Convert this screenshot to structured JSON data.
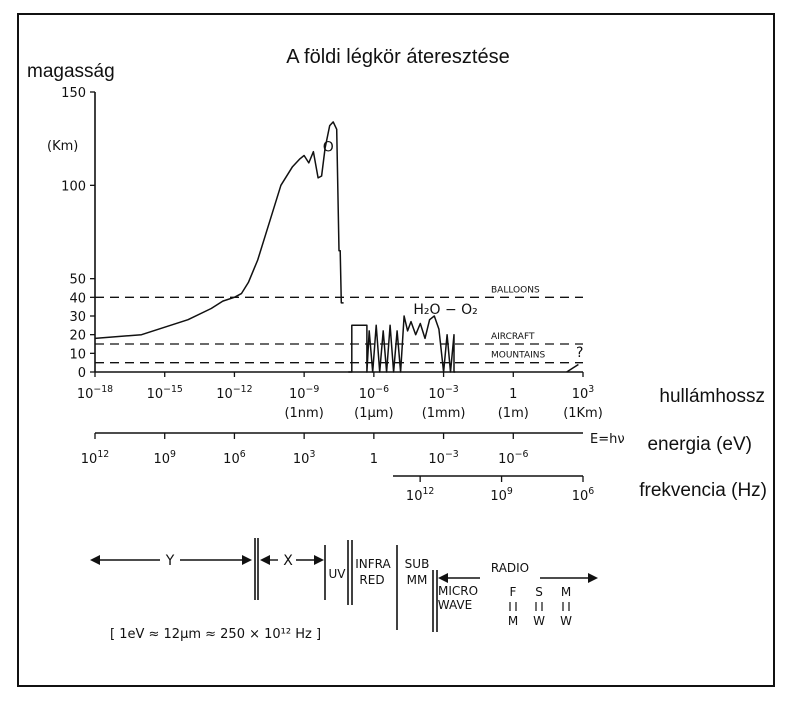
{
  "title": "A földi légkör áteresztése",
  "ylabel": "magasság",
  "yunit": "(Km)",
  "wavelength_label": "hullámhossz",
  "energy_label": "energia (eV)",
  "frequency_label": "frekvencia (Hz)",
  "energy_formula": "E=hν",
  "conversion_note": "[ 1eV ≈ 12μm ≈ 250 × 10¹² Hz ]",
  "chart_data": {
    "type": "line",
    "x_scale": "log10 wavelength (m)",
    "xlim": [
      -18,
      3
    ],
    "ylim": [
      0,
      150
    ],
    "y_ticks": [
      "150",
      "100",
      "50",
      "40",
      "30",
      "20",
      "10",
      "0"
    ],
    "y_tick_values": [
      150,
      100,
      50,
      40,
      30,
      20,
      10,
      0
    ],
    "x_ticks": [
      {
        "exp": -18,
        "base": "10",
        "power": "−18",
        "sub": ""
      },
      {
        "exp": -15,
        "base": "10",
        "power": "−15",
        "sub": ""
      },
      {
        "exp": -12,
        "base": "10",
        "power": "−12",
        "sub": ""
      },
      {
        "exp": -9,
        "base": "10",
        "power": "−9",
        "sub": "(1nm)"
      },
      {
        "exp": -6,
        "base": "10",
        "power": "−6",
        "sub": "(1μm)"
      },
      {
        "exp": -3,
        "base": "10",
        "power": "−3",
        "sub": "(1mm)"
      },
      {
        "exp": 0,
        "base": "1",
        "power": "",
        "sub": "(1m)"
      },
      {
        "exp": 3,
        "base": "10",
        "power": "3",
        "sub": "(1Km)"
      }
    ],
    "reference_lines": [
      {
        "label": "BALLOONS",
        "y": 40
      },
      {
        "label": "AIRCRAFT",
        "y": 15
      },
      {
        "label": "MOUNTAINS",
        "y": 5
      }
    ],
    "annotations": [
      {
        "text": "O",
        "x": -8.2,
        "y": 118
      },
      {
        "text": "H₂O − O₂",
        "x": -4.3,
        "y": 31
      },
      {
        "text": "?",
        "x": 2.7,
        "y": 8
      }
    ],
    "series": [
      {
        "x": [
          -18,
          -16,
          -14,
          -13,
          -12.5,
          -12,
          -11.7,
          -11.4,
          -11,
          -10.5,
          -10,
          -9.5,
          -9.2,
          -9,
          -8.8,
          -8.6,
          -8.4,
          -8.25,
          -8.1,
          -7.9,
          -7.75,
          -7.6,
          -7.5,
          -7.45,
          -7.4,
          -7.35,
          -7.3
        ],
        "y": [
          18,
          20,
          28,
          34,
          38,
          40,
          42,
          48,
          60,
          80,
          100,
          110,
          114,
          116,
          112,
          118,
          104,
          105,
          120,
          132,
          134,
          130,
          65,
          65,
          37,
          37,
          37
        ]
      },
      {
        "x": [
          -7.1,
          -6.95,
          -6.95,
          -6.3,
          -6.3,
          -6.2,
          -6.05,
          -5.9,
          -5.75,
          -5.6,
          -5.45,
          -5.3,
          -5.15,
          -5,
          -4.85,
          -4.7,
          -4.55,
          -4.4,
          -4.2,
          -4,
          -3.8,
          -3.6,
          -3.4,
          -3.2,
          -3.0,
          -2.85,
          -2.7,
          -2.55,
          -2.55,
          -2.5
        ],
        "y": [
          0,
          0,
          25,
          25,
          0,
          22,
          0,
          25,
          0,
          22,
          0,
          25,
          0,
          22,
          0,
          30,
          22,
          27,
          20,
          26,
          18,
          28,
          30,
          23,
          0,
          20,
          0,
          20,
          0,
          0
        ]
      },
      {
        "x": [
          2.3,
          2.55,
          2.8
        ],
        "y": [
          0,
          2,
          4
        ]
      }
    ]
  },
  "energy_axis": {
    "ticks": [
      {
        "exp": 12,
        "base": "10",
        "power": "12"
      },
      {
        "exp": 9,
        "base": "10",
        "power": "9"
      },
      {
        "exp": 6,
        "base": "10",
        "power": "6"
      },
      {
        "exp": 3,
        "base": "10",
        "power": "3"
      },
      {
        "exp": 0,
        "base": "1",
        "power": ""
      },
      {
        "exp": -3,
        "base": "10",
        "power": "−3"
      },
      {
        "exp": -6,
        "base": "10",
        "power": "−6"
      }
    ]
  },
  "frequency_axis": {
    "ticks": [
      {
        "exp": 12,
        "base": "10",
        "power": "12"
      },
      {
        "exp": 9,
        "base": "10",
        "power": "9"
      },
      {
        "exp": 6,
        "base": "10",
        "power": "6"
      }
    ]
  },
  "bands": [
    {
      "id": "gamma",
      "label": "Y"
    },
    {
      "id": "x",
      "label": "X"
    },
    {
      "id": "uv",
      "label": "UV"
    },
    {
      "id": "ir",
      "label": "INFRA RED"
    },
    {
      "id": "submm",
      "label": "SUB MM"
    },
    {
      "id": "microwave",
      "label": "MICRO WAVE"
    },
    {
      "id": "radio",
      "label": "RADIO"
    },
    {
      "id": "fm",
      "label": "F M"
    },
    {
      "id": "sw",
      "label": "S W"
    },
    {
      "id": "mw",
      "label": "M W"
    }
  ]
}
